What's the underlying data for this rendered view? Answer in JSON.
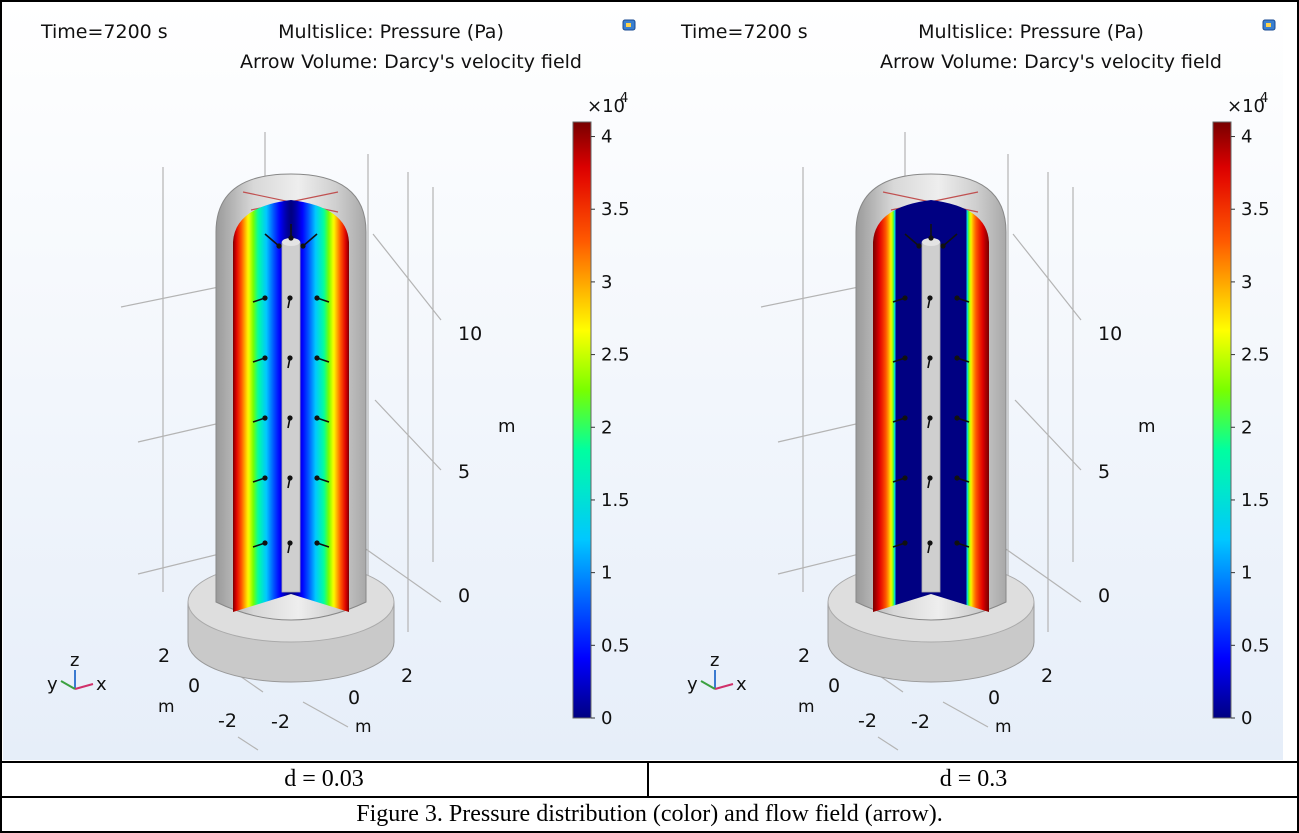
{
  "panels": [
    {
      "time_label": "Time=7200 s",
      "title_line1": "Multislice: Pressure (Pa)",
      "title_line2": "Arrow Volume: Darcy's velocity field",
      "exponent_base": "×10",
      "exponent_power": "4",
      "colorbar_ticks": [
        "4",
        "3.5",
        "3",
        "2.5",
        "2",
        "1.5",
        "1",
        "0.5",
        "0"
      ],
      "z_ticks": [
        "10",
        "5",
        "0"
      ],
      "z_unit": "m",
      "x_ticks": [
        "2",
        "0",
        "-2"
      ],
      "x_unit": "m",
      "y_ticks": [
        "2",
        "0",
        "-2"
      ],
      "y_unit": "m",
      "triad": {
        "x": "x",
        "y": "y",
        "z": "z"
      },
      "caption": "d = 0.03"
    },
    {
      "time_label": "Time=7200 s",
      "title_line1": "Multislice: Pressure (Pa)",
      "title_line2": "Arrow Volume: Darcy's velocity field",
      "exponent_base": "×10",
      "exponent_power": "4",
      "colorbar_ticks": [
        "4",
        "3.5",
        "3",
        "2.5",
        "2",
        "1.5",
        "1",
        "0.5",
        "0"
      ],
      "z_ticks": [
        "10",
        "5",
        "0"
      ],
      "z_unit": "m",
      "x_ticks": [
        "2",
        "0",
        "-2"
      ],
      "x_unit": "m",
      "y_ticks": [
        "2",
        "0",
        "-2"
      ],
      "y_unit": "m",
      "triad": {
        "x": "x",
        "y": "y",
        "z": "z"
      },
      "caption": "d = 0.3"
    }
  ],
  "figure_caption": "Figure 3. Pressure distribution (color) and flow field (arrow).",
  "chart_data": [
    {
      "type": "heatmap",
      "title": "Multislice: Pressure (Pa)",
      "subtitle": "Arrow Volume: Darcy's velocity field",
      "time": "Time=7200 s",
      "case": "d = 0.03",
      "color_range": [
        0,
        41000
      ],
      "colorbar_scale": "×10^4",
      "colorbar_ticks": [
        0,
        0.5,
        1,
        1.5,
        2,
        2.5,
        3,
        3.5,
        4
      ],
      "z_axis": {
        "label": "m",
        "ticks": [
          0,
          5,
          10
        ]
      },
      "x_axis": {
        "label": "m",
        "ticks": [
          -2,
          0,
          2
        ]
      },
      "y_axis": {
        "label": "m",
        "ticks": [
          -2,
          0,
          2
        ]
      },
      "colormap": "rainbow",
      "pressure_profile": {
        "outer_wall": 41000,
        "inner_bore": 0,
        "min_band_fraction": 0.0,
        "falloff_exponent": 1.4
      }
    },
    {
      "type": "heatmap",
      "title": "Multislice: Pressure (Pa)",
      "subtitle": "Arrow Volume: Darcy's velocity field",
      "time": "Time=7200 s",
      "case": "d = 0.3",
      "color_range": [
        0,
        41000
      ],
      "colorbar_scale": "×10^4",
      "colorbar_ticks": [
        0,
        0.5,
        1,
        1.5,
        2,
        2.5,
        3,
        3.5,
        4
      ],
      "z_axis": {
        "label": "m",
        "ticks": [
          0,
          5,
          10
        ]
      },
      "x_axis": {
        "label": "m",
        "ticks": [
          -2,
          0,
          2
        ]
      },
      "y_axis": {
        "label": "m",
        "ticks": [
          -2,
          0,
          2
        ]
      },
      "colormap": "rainbow",
      "pressure_profile": {
        "outer_wall": 41000,
        "inner_bore": 0,
        "min_band_fraction": 0.62,
        "falloff_exponent": 0.25
      }
    }
  ],
  "colors": {
    "background_top": "#ffffff",
    "background_bottom": "#e6eef9",
    "cylinder_gray": "#c4c4c4",
    "grid_line": "#b4b4b4",
    "table_border": "#000000"
  }
}
